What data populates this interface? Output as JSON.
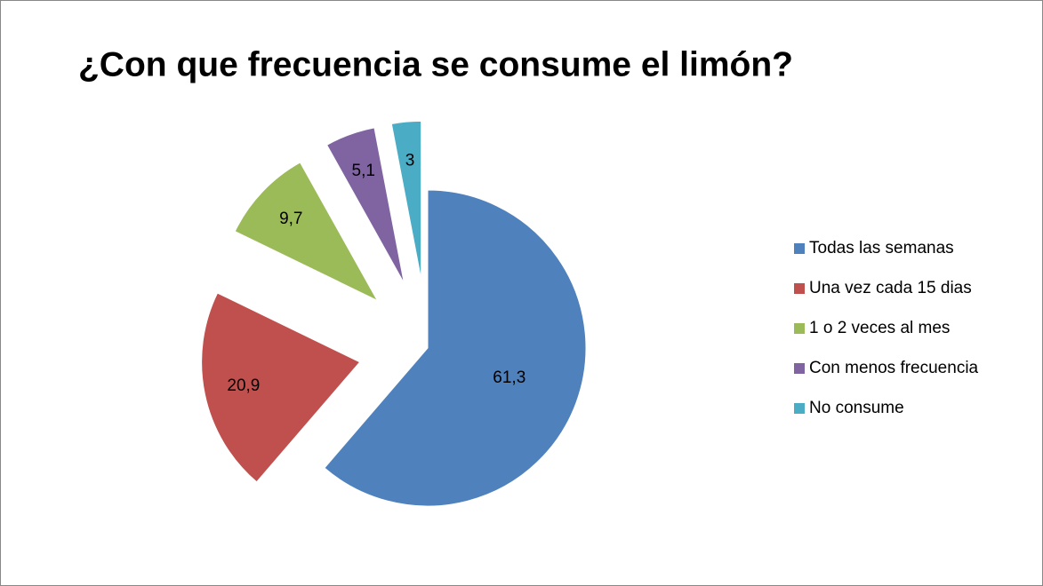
{
  "chart_data": {
    "type": "pie",
    "title": "¿Con que frecuencia se consume el limón?",
    "categories": [
      "Todas las semanas",
      "Una vez cada 15 dias",
      "1 o 2 veces al mes",
      "Con menos frecuencia",
      "No consume"
    ],
    "values": [
      61.3,
      20.9,
      9.7,
      5.1,
      3
    ],
    "value_labels": [
      "61,3",
      "20,9",
      "9,7",
      "5,1",
      "3"
    ],
    "colors": [
      "#4f81bd",
      "#c0504d",
      "#9bbb59",
      "#8064a2",
      "#4bacc6"
    ],
    "legend": "right"
  }
}
